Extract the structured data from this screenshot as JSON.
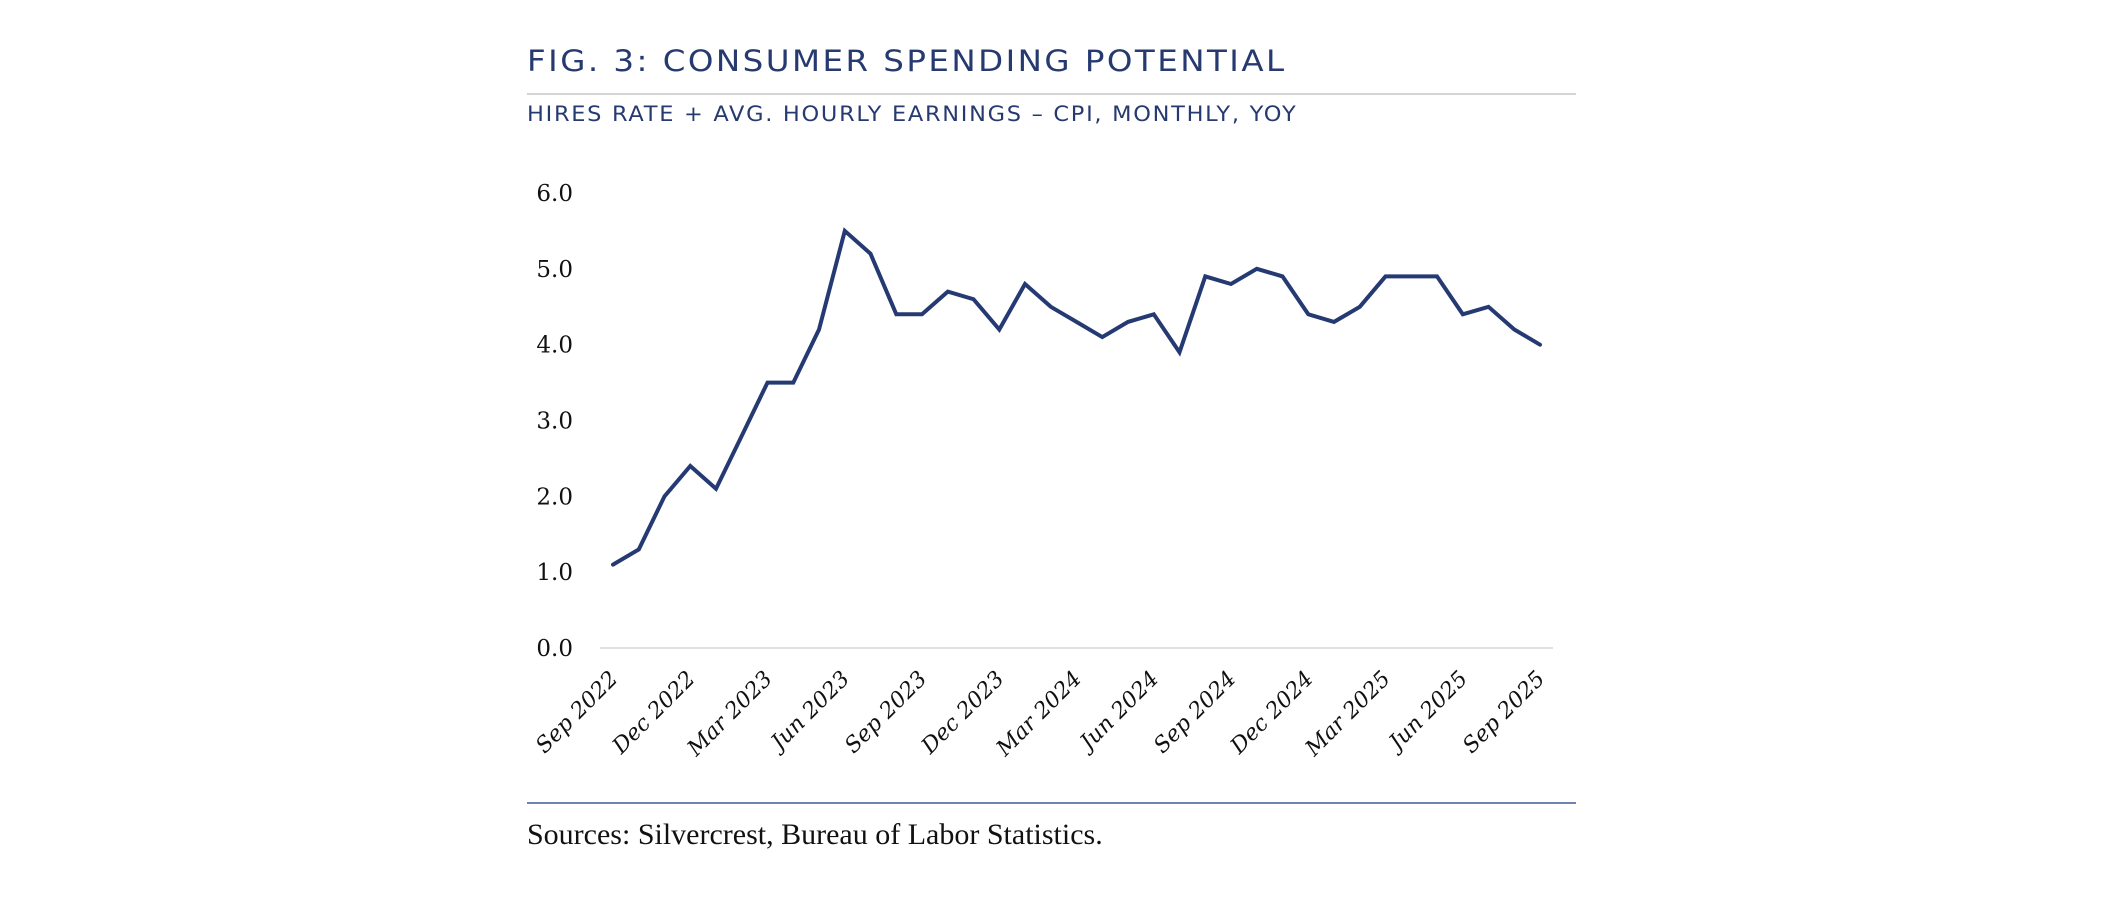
{
  "header": {
    "title": "FIG. 3: CONSUMER SPENDING POTENTIAL",
    "subtitle": "HIRES RATE + AVG. HOURLY EARNINGS – CPI, MONTHLY, YOY"
  },
  "footer": {
    "source": "Sources: Silvercrest, Bureau of Labor Statistics."
  },
  "colors": {
    "line": "#253a73",
    "title": "#263a70",
    "gridline": "#d9d9d9",
    "bottom_rule": "#6f84b2"
  },
  "chart_data": {
    "type": "line",
    "title": "FIG. 3: CONSUMER SPENDING POTENTIAL",
    "subtitle": "HIRES RATE + AVG. HOURLY EARNINGS – CPI, MONTHLY, YOY",
    "xlabel": "",
    "ylabel": "",
    "ylim": [
      0,
      6
    ],
    "yticks": [
      "0.0",
      "1.0",
      "2.0",
      "3.0",
      "4.0",
      "5.0",
      "6.0"
    ],
    "grid": "baseline only",
    "legend": "none",
    "x": [
      "Sep 2022",
      "Oct 2022",
      "Nov 2022",
      "Dec 2022",
      "Jan 2023",
      "Feb 2023",
      "Mar 2023",
      "Apr 2023",
      "May 2023",
      "Jun 2023",
      "Jul 2023",
      "Aug 2023",
      "Sep 2023",
      "Oct 2023",
      "Nov 2023",
      "Dec 2023",
      "Jan 2024",
      "Feb 2024",
      "Mar 2024",
      "Apr 2024",
      "May 2024",
      "Jun 2024",
      "Jul 2024",
      "Aug 2024",
      "Sep 2024",
      "Oct 2024",
      "Nov 2024",
      "Dec 2024",
      "Jan 2025",
      "Feb 2025",
      "Mar 2025",
      "Apr 2025",
      "May 2025",
      "Jun 2025",
      "Jul 2025",
      "Aug 2025",
      "Sep 2025"
    ],
    "xtick_labels": [
      "Sep 2022",
      "Dec 2022",
      "Mar 2023",
      "Jun 2023",
      "Sep 2023",
      "Dec 2023",
      "Mar 2024",
      "Jun 2024",
      "Sep 2024",
      "Dec 2024",
      "Mar 2025",
      "Jun 2025",
      "Sep 2025"
    ],
    "series": [
      {
        "name": "Hires Rate + Avg. Hourly Earnings – CPI",
        "values": [
          1.1,
          1.3,
          2.0,
          2.4,
          2.1,
          2.8,
          3.5,
          3.5,
          4.2,
          5.5,
          5.2,
          4.4,
          4.4,
          4.7,
          4.6,
          4.2,
          4.8,
          4.5,
          4.3,
          4.1,
          4.3,
          4.4,
          3.9,
          4.9,
          4.8,
          5.0,
          4.9,
          4.4,
          4.3,
          4.5,
          4.9,
          4.9,
          4.9,
          4.4,
          4.5,
          4.2,
          4.0
        ]
      }
    ],
    "source": "Sources: Silvercrest, Bureau of Labor Statistics."
  }
}
